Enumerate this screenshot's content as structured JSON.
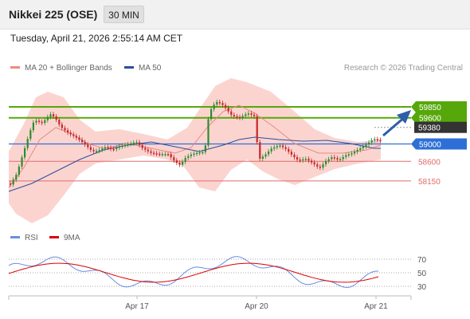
{
  "header": {
    "title": "Nikkei 225 (OSE)",
    "timeframe": "30 MIN"
  },
  "timestamp": "Tuesday, April 21, 2026 2:55:14 AM CET",
  "legend": {
    "ma20": {
      "label": "MA 20 + Bollinger Bands",
      "color": "#f08a80"
    },
    "ma50": {
      "label": "MA 50",
      "color": "#2a4f9c"
    }
  },
  "credit": "Research © 2026 Trading Central",
  "price_levels": [
    {
      "label": "59850",
      "kind": "resistance"
    },
    {
      "label": "59600",
      "kind": "resistance"
    },
    {
      "label": "59380",
      "kind": "current"
    },
    {
      "label": "59000",
      "kind": "pivot"
    },
    {
      "label": "58600",
      "kind": "support"
    },
    {
      "label": "58150",
      "kind": "support"
    }
  ],
  "rsi": {
    "legend_rsi": "RSI",
    "legend_ma": "9MA",
    "rsi_color": "#6a8ee0",
    "ma_color": "#dd0000",
    "levels": [
      "70",
      "50",
      "30"
    ]
  },
  "x_axis": {
    "labels": [
      "Apr 17",
      "Apr 20",
      "Apr 21"
    ]
  },
  "colors": {
    "resistance": "#56a80a",
    "pivot": "#2d6fd6",
    "support": "#e06c6c",
    "current": "#333333",
    "bullish": "#2e8b2e",
    "bearish": "#c62828",
    "arrow": "#2e5ea8",
    "band": "#fbd4d0"
  }
}
